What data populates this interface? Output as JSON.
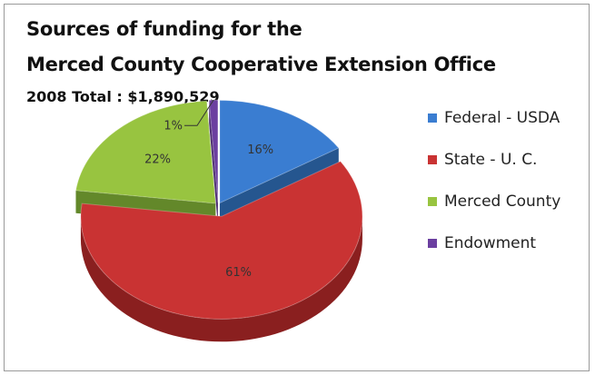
{
  "chart_data": {
    "type": "pie",
    "title": "Sources of funding for the",
    "title_line2": "Merced County Cooperative Extension Office",
    "subtitle": "2008 Total : $1,890,529",
    "legend_position": "right",
    "exploded": true,
    "three_d": true,
    "slices": [
      {
        "name": "Federal - USDA",
        "value": 16,
        "label": "16%",
        "color": "#3a7dd1",
        "side": "#25568f"
      },
      {
        "name": "State - U. C.",
        "value": 61,
        "label": "61%",
        "color": "#c93333",
        "side": "#8a1f1f"
      },
      {
        "name": "Merced County",
        "value": 22,
        "label": "22%",
        "color": "#98c440",
        "side": "#63882a"
      },
      {
        "name": "Endowment",
        "value": 1,
        "label": "1%",
        "color": "#6b3fa0",
        "side": "#4a2a70"
      }
    ]
  }
}
